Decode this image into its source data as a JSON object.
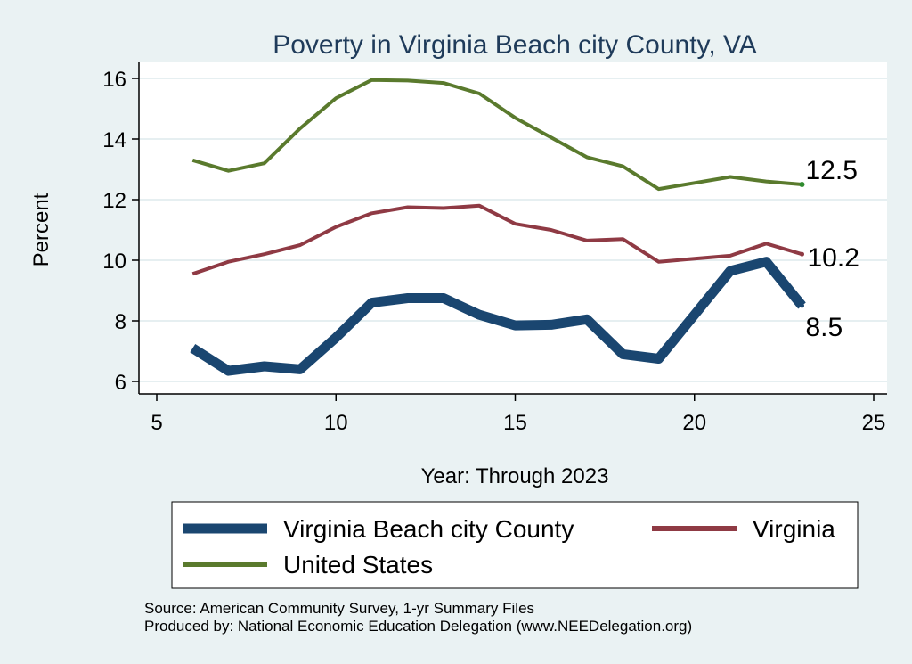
{
  "chart_data": {
    "type": "line",
    "title": "Poverty in Virginia Beach city County, VA",
    "xlabel": "Year: Through 2023",
    "ylabel": "Percent",
    "xlim": [
      5,
      25
    ],
    "ylim": [
      5.6,
      16.6
    ],
    "xticks": [
      "5",
      "10",
      "15",
      "20",
      "25"
    ],
    "yticks": [
      "6",
      "8",
      "10",
      "12",
      "14",
      "16"
    ],
    "grid": true,
    "legend_position": "bottom",
    "series": [
      {
        "name": "Virginia Beach city County",
        "color": "#1a4670",
        "x": [
          6,
          7,
          8,
          9,
          10,
          11,
          12,
          13,
          14,
          15,
          16,
          17,
          18,
          19,
          20,
          21,
          22,
          23
        ],
        "values": [
          7.1,
          6.35,
          6.5,
          6.4,
          7.45,
          8.6,
          8.75,
          8.75,
          8.2,
          7.85,
          7.87,
          8.05,
          6.9,
          6.75,
          8.2,
          9.65,
          9.95,
          8.5
        ],
        "end_label": "8.5"
      },
      {
        "name": "Virginia",
        "color": "#8f3a44",
        "x": [
          6,
          7,
          8,
          9,
          10,
          11,
          12,
          13,
          14,
          15,
          16,
          17,
          18,
          19,
          20,
          21,
          22,
          23
        ],
        "values": [
          9.55,
          9.95,
          10.2,
          10.5,
          11.1,
          11.55,
          11.75,
          11.72,
          11.8,
          11.2,
          11.0,
          10.65,
          10.7,
          9.95,
          10.05,
          10.15,
          10.55,
          10.2
        ],
        "end_label": "10.2"
      },
      {
        "name": "United States",
        "color": "#5a7a2d",
        "x": [
          6,
          7,
          8,
          9,
          10,
          11,
          12,
          13,
          14,
          15,
          16,
          17,
          18,
          19,
          20,
          21,
          22,
          23
        ],
        "values": [
          13.3,
          12.95,
          13.2,
          14.35,
          15.35,
          15.95,
          15.93,
          15.85,
          15.5,
          14.7,
          14.05,
          13.4,
          13.1,
          12.35,
          12.55,
          12.75,
          12.6,
          12.5
        ],
        "end_label": "12.5"
      }
    ],
    "notes": [
      "Source: American Community Survey, 1-yr Summary Files",
      "Produced by: National Economic Education Delegation (www.NEEDelegation.org)"
    ]
  }
}
